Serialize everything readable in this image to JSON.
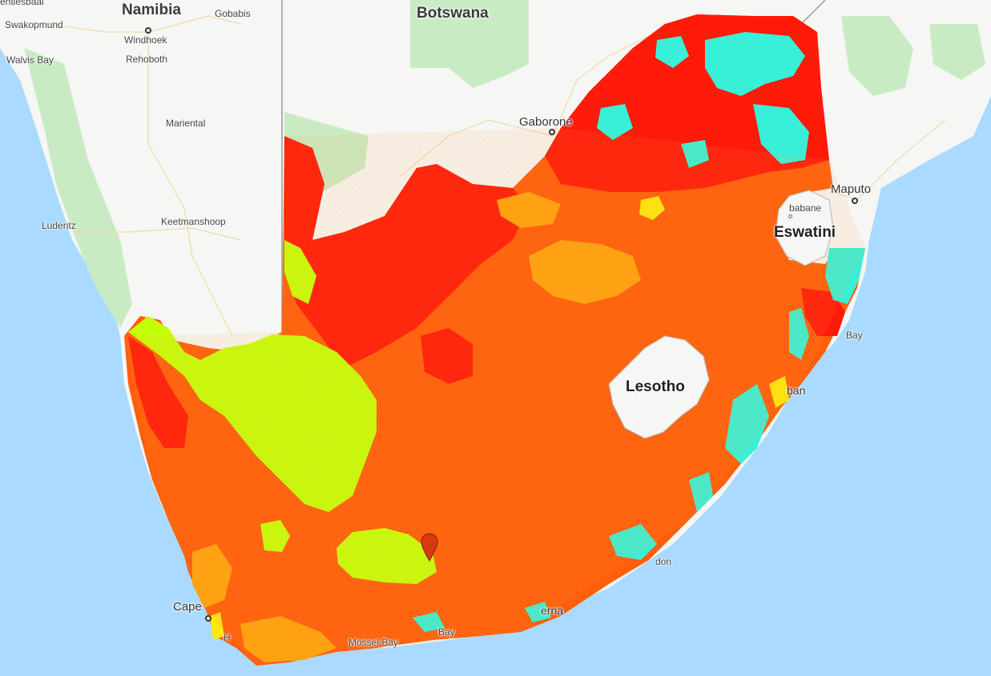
{
  "map": {
    "colors": {
      "sea": "#aadaff",
      "land": "#f6f6f4",
      "park": "#c9ebc4",
      "class_red": "#ff1a0a",
      "class_orange": "#ff5e0b",
      "class_amber": "#ffa20f",
      "class_yellow": "#ffe80c",
      "class_lime": "#c4ff0a",
      "class_cyan": "#38f0d8"
    },
    "countries": {
      "namibia": "Namibia",
      "botswana": "Botswana",
      "lesotho": "Lesotho",
      "eswatini": "Eswatini"
    },
    "cities": {
      "swakopmund": "Swakopmund",
      "walvis_bay": "Walvis Bay",
      "windhoek": "Windhoek",
      "rehoboth": "Rehoboth",
      "gobabis": "Gobabis",
      "mariental": "Mariental",
      "keetmanshoop": "Keetmanshoop",
      "luderitz": "Luderitz",
      "gaborone": "Gaborone",
      "maputo": "Maputo",
      "mbabane_partial": "babane",
      "bay_partial": "Bay",
      "durban_partial": "ban",
      "london_partial": "don",
      "elizabeth_partial": "erna",
      "plett_bay": "Bay",
      "mossel_bay": "Mossel Bay",
      "cape_partial": "Cape",
      "h_partial": "H",
      "top_partial": "entiesbaai"
    },
    "marker_icon": "map-pin-icon"
  }
}
